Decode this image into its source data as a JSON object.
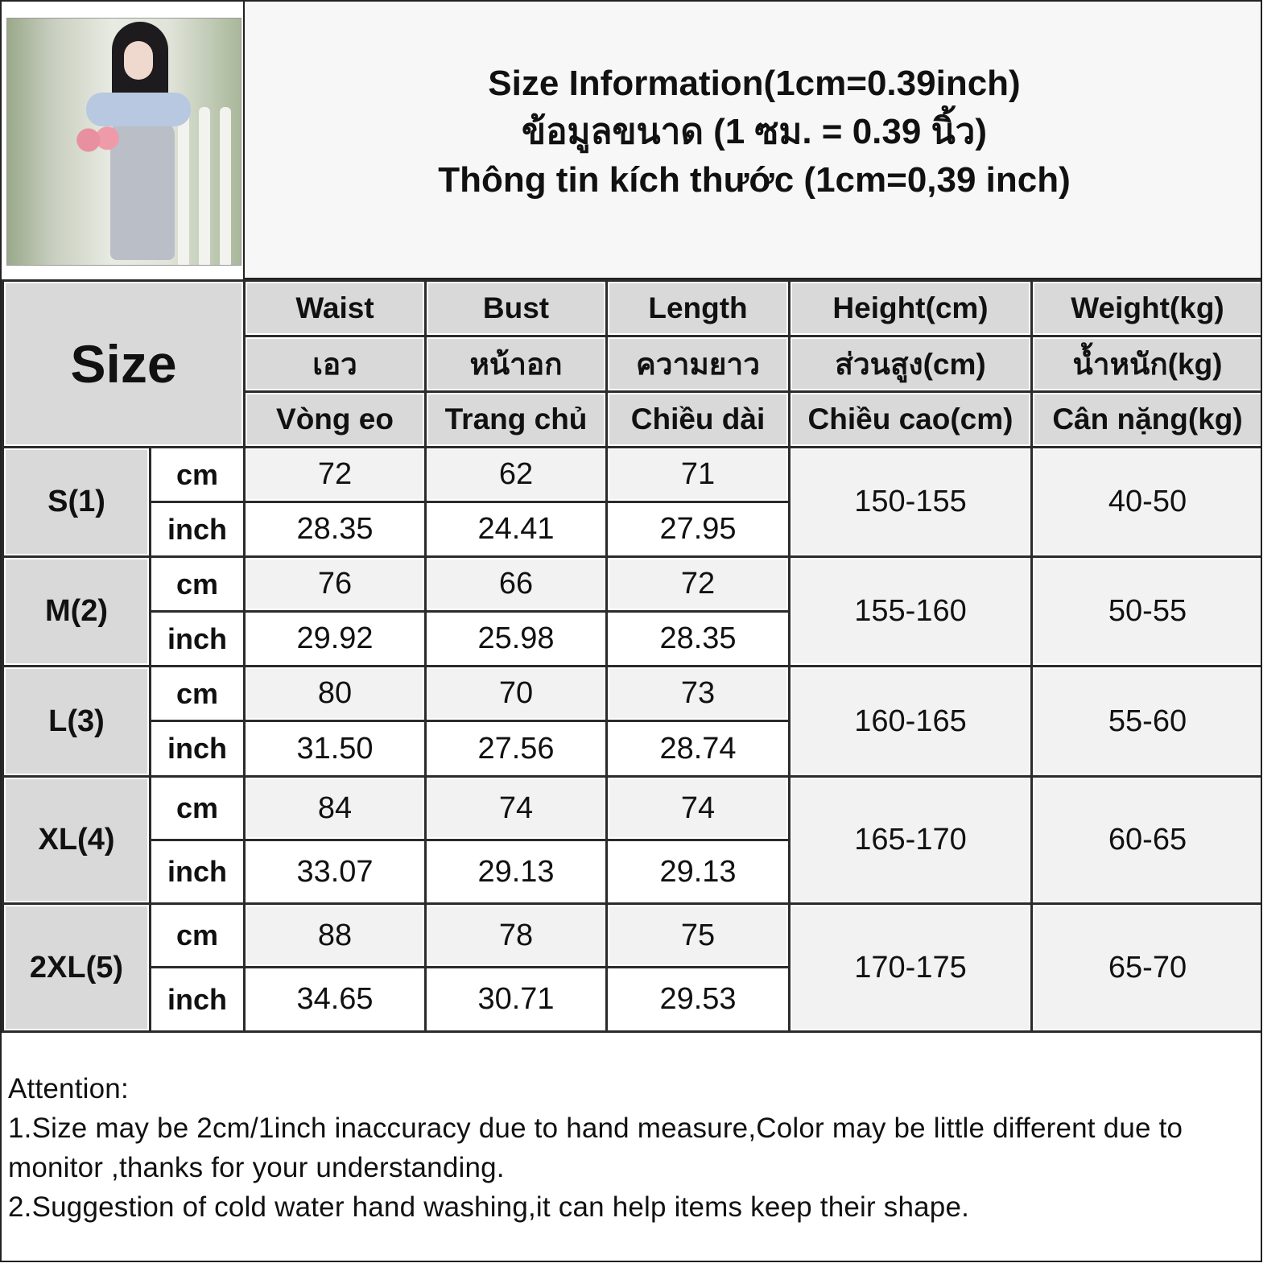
{
  "title": {
    "line1": "Size Information(1cm=0.39inch)",
    "line2": "ข้อมูลขนาด (1 ซม. = 0.39 นิ้ว)",
    "line3": "Thông tin kích thước (1cm=0,39 inch)"
  },
  "table": {
    "size_header": "Size",
    "columns": [
      {
        "en": "Waist",
        "th": "เอว",
        "vi": "Vòng eo"
      },
      {
        "en": "Bust",
        "th": "หน้าอก",
        "vi": "Trang chủ"
      },
      {
        "en": "Length",
        "th": "ความยาว",
        "vi": "Chiều dài"
      },
      {
        "en": "Height(cm)",
        "th": "ส่วนสูง(cm)",
        "vi": "Chiều cao(cm)"
      },
      {
        "en": "Weight(kg)",
        "th": "น้ำหนัก(kg)",
        "vi": "Cân nặng(kg)"
      }
    ],
    "units": {
      "cm": "cm",
      "inch": "inch"
    },
    "rows": [
      {
        "size": "S(1)",
        "cm": [
          "72",
          "62",
          "71"
        ],
        "inch": [
          "28.35",
          "24.41",
          "27.95"
        ],
        "height": "150-155",
        "weight": "40-50"
      },
      {
        "size": "M(2)",
        "cm": [
          "76",
          "66",
          "72"
        ],
        "inch": [
          "29.92",
          "25.98",
          "28.35"
        ],
        "height": "155-160",
        "weight": "50-55"
      },
      {
        "size": "L(3)",
        "cm": [
          "80",
          "70",
          "73"
        ],
        "inch": [
          "31.50",
          "27.56",
          "28.74"
        ],
        "height": "160-165",
        "weight": "55-60"
      },
      {
        "size": "XL(4)",
        "cm": [
          "84",
          "74",
          "74"
        ],
        "inch": [
          "33.07",
          "29.13",
          "29.13"
        ],
        "height": "165-170",
        "weight": "60-65"
      },
      {
        "size": "2XL(5)",
        "cm": [
          "88",
          "78",
          "75"
        ],
        "inch": [
          "34.65",
          "30.71",
          "29.53"
        ],
        "height": "170-175",
        "weight": "65-70"
      }
    ]
  },
  "attention": {
    "heading": "Attention:",
    "note1": "1.Size may be 2cm/1inch inaccuracy due to hand measure,Color may be little different due to monitor ,thanks for your understanding.",
    "note2": "2.Suggestion of cold water hand washing,it can help items keep their shape."
  },
  "colors": {
    "header_bg": "#d9d9d9",
    "cm_row_bg": "#f2f2f2",
    "border": "#2b2b2b"
  }
}
